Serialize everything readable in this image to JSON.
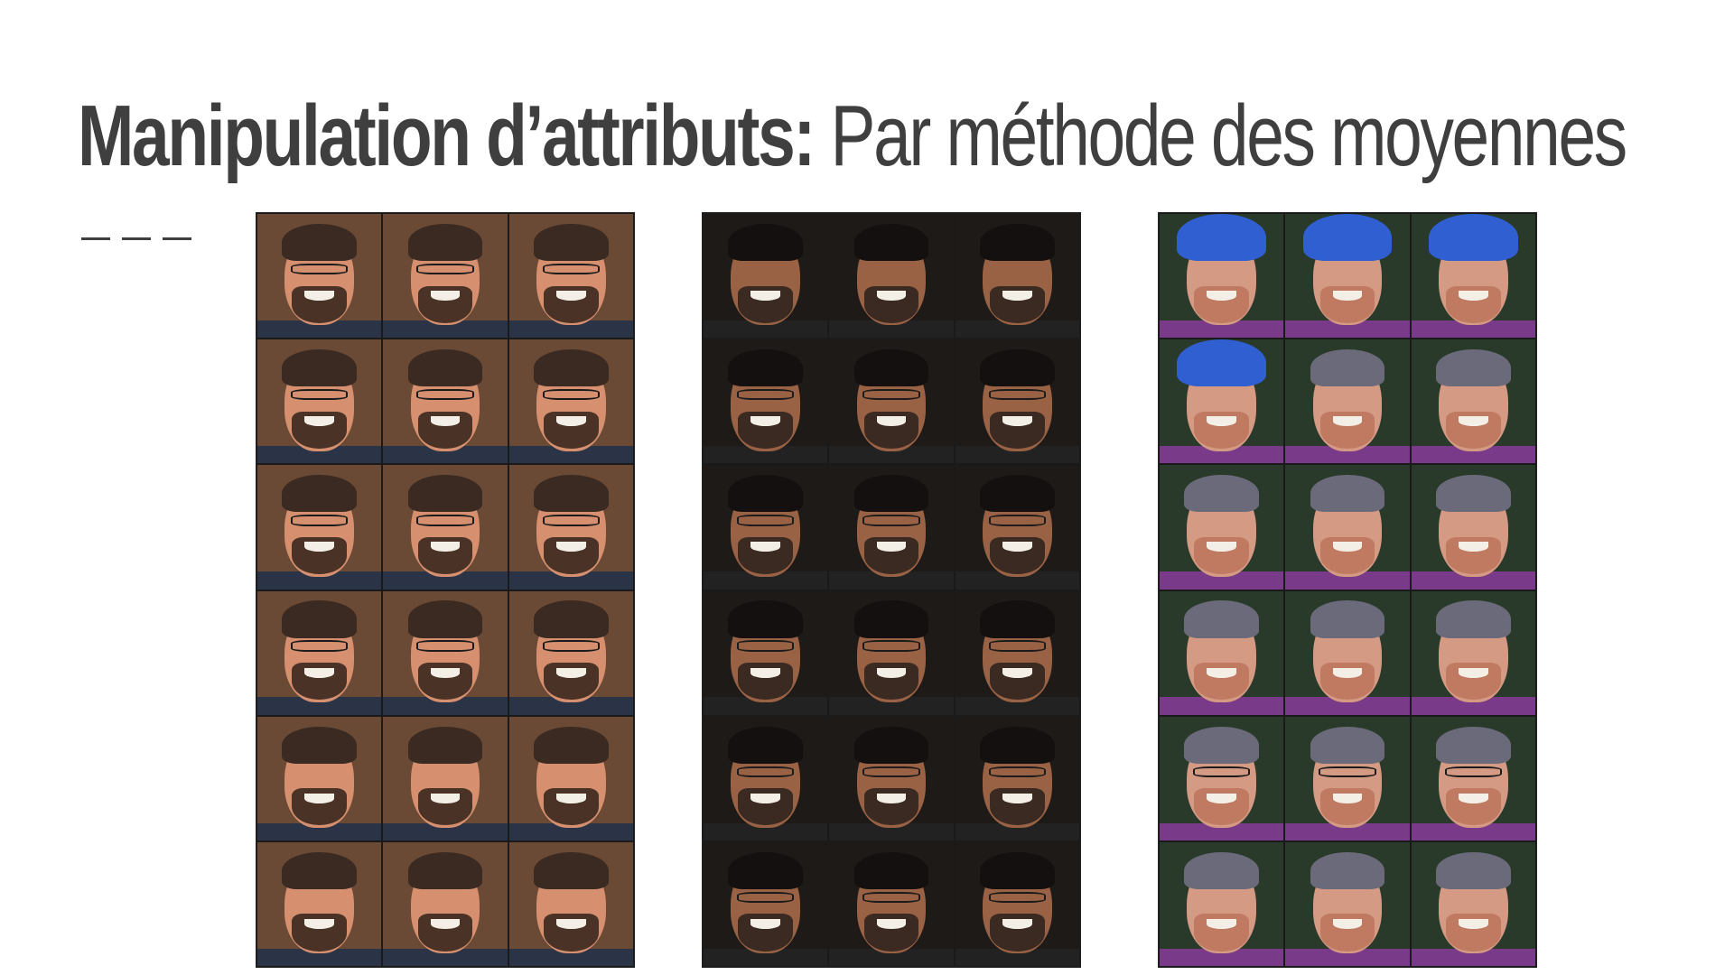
{
  "slide": {
    "title_bold": "Manipulation d’attributs:",
    "title_light": " Par méthode des moyennes"
  },
  "grids": [
    {
      "name": "bearded-man-glasses-grid",
      "bg": "#6b4a35",
      "skin": "#d69070",
      "hair": "#3a2a22",
      "beard": "#4a3326",
      "torso": "#2b3346",
      "glasses_rows": [
        true,
        true,
        true,
        true,
        false,
        false
      ]
    },
    {
      "name": "dark-haired-man-grid",
      "bg": "#1e1a18",
      "skin": "#9a6244",
      "hair": "#141010",
      "beard": "#3a2a22",
      "torso": "#222222",
      "glasses_rows": [
        false,
        true,
        true,
        true,
        true,
        true
      ]
    },
    {
      "name": "helmet-to-woman-grid",
      "bg": "#2a3a2a",
      "skin": "#d49a84",
      "hair": "#6b6a7a",
      "beard": "#c07a62",
      "torso": "#7a3a8a",
      "helmet": "#2f5fd0",
      "glasses_rows": [
        false,
        false,
        false,
        false,
        true,
        false
      ]
    }
  ]
}
